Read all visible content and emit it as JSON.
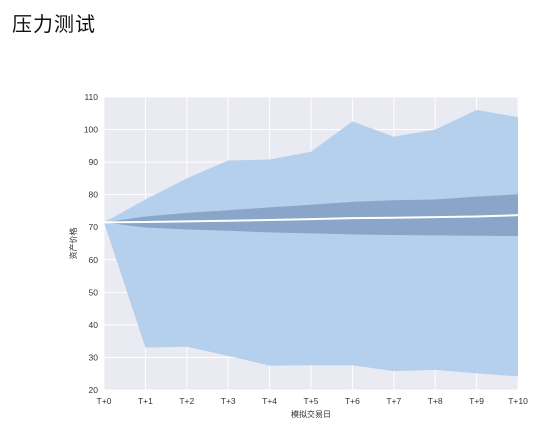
{
  "page": {
    "title": "压力测试"
  },
  "chart_data": {
    "type": "area",
    "title": "",
    "xlabel": "模拟交易日",
    "ylabel": "资产价格",
    "categories": [
      "T+0",
      "T+1",
      "T+2",
      "T+3",
      "T+4",
      "T+5",
      "T+6",
      "T+7",
      "T+8",
      "T+9",
      "T+10"
    ],
    "yticks": [
      20,
      30,
      40,
      50,
      60,
      70,
      80,
      90,
      100,
      110
    ],
    "ylim": [
      20,
      110
    ],
    "grid": true,
    "legend": "none",
    "series": [
      {
        "role": "outer-upper",
        "values": [
          71.5,
          78.5,
          85,
          90.5,
          90.8,
          93.2,
          102.5,
          97.8,
          100,
          106,
          103.8
        ]
      },
      {
        "role": "outer-lower",
        "values": [
          71.5,
          33,
          33.3,
          30.5,
          27.5,
          27.6,
          27.6,
          25.8,
          26.2,
          25.1,
          24.2
        ]
      },
      {
        "role": "inner-upper",
        "values": [
          71.5,
          73.3,
          74.4,
          75.2,
          76.1,
          76.9,
          77.8,
          78.3,
          78.5,
          79.4,
          80.1
        ]
      },
      {
        "role": "inner-lower",
        "values": [
          71.5,
          69.9,
          69.3,
          68.9,
          68.4,
          68.1,
          67.8,
          67.6,
          67.5,
          67.4,
          67.3
        ]
      },
      {
        "role": "median",
        "values": [
          71.5,
          71.6,
          71.8,
          72,
          72.2,
          72.5,
          72.8,
          72.9,
          73.1,
          73.3,
          73.7
        ]
      }
    ],
    "colors": {
      "plot_background": "#eaeaf2",
      "grid": "#ffffff",
      "outer_band": "#b5d0ec",
      "inner_band": "#89a6c8",
      "median": "#ffffff"
    }
  }
}
